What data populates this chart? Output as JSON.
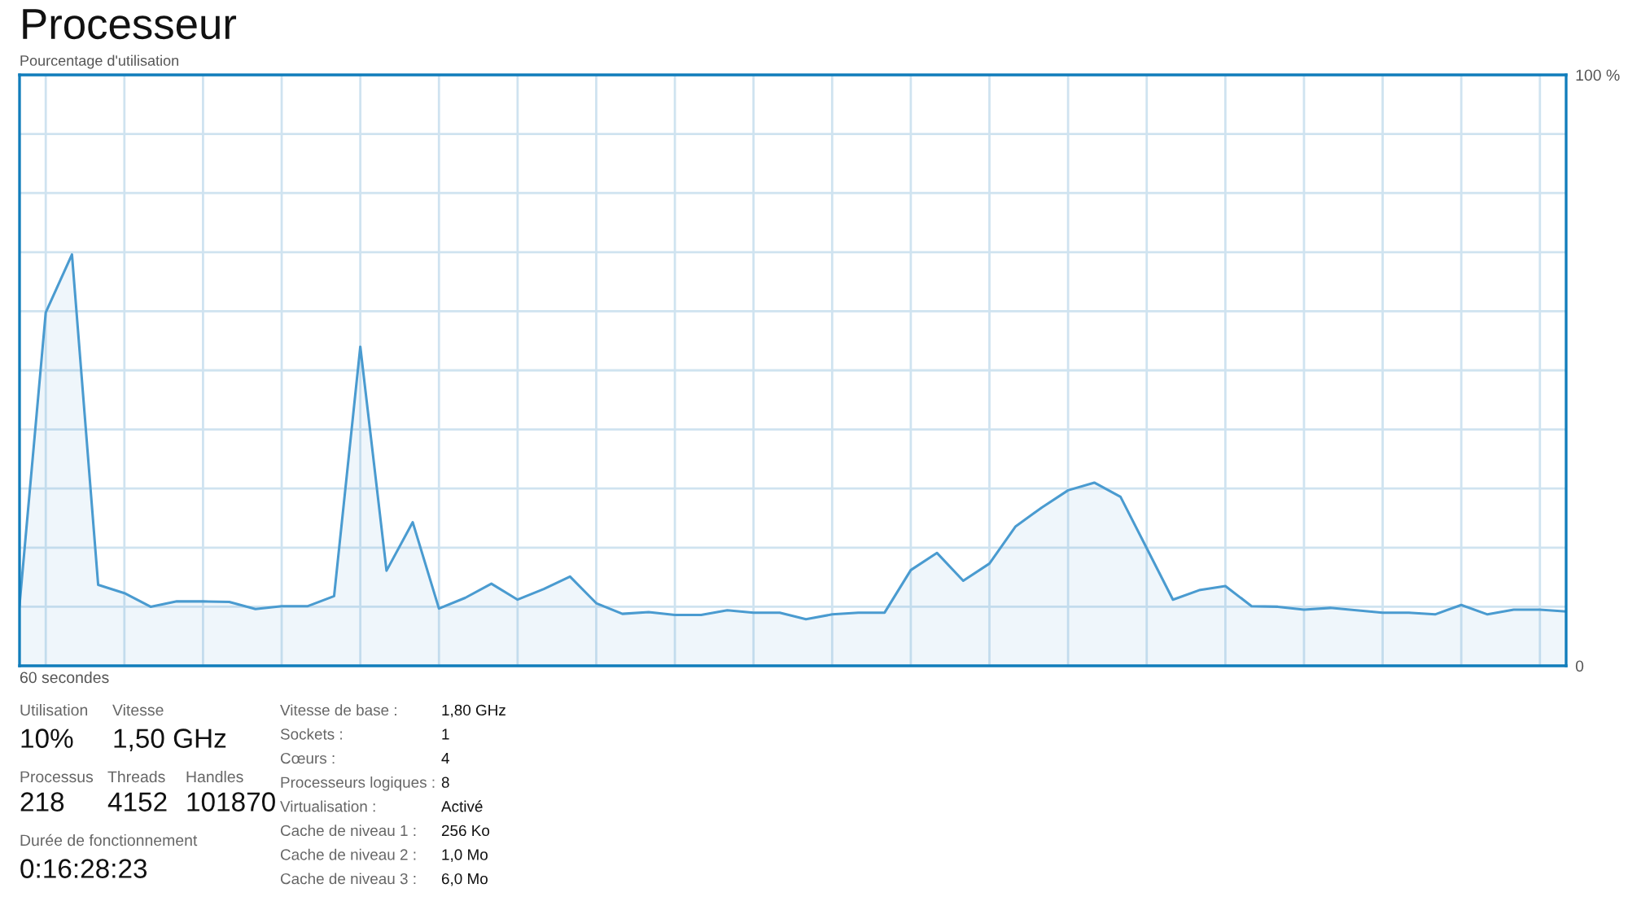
{
  "chart_data": {
    "type": "area",
    "title": "Processeur",
    "ylabel": "Pourcentage d'utilisation",
    "xlabel": "60 secondes",
    "categories": [
      null,
      null,
      null,
      null,
      null,
      null,
      null,
      null,
      null,
      null,
      null,
      null,
      null,
      null,
      null,
      null,
      null,
      null,
      null,
      null,
      null,
      null,
      null,
      null,
      null,
      null,
      null,
      null,
      null,
      null,
      null,
      null,
      null,
      null,
      null,
      null,
      null,
      null,
      null,
      null,
      null,
      null,
      null,
      null,
      null,
      null,
      null,
      null,
      null,
      null,
      null,
      null,
      null,
      null,
      null,
      null,
      null,
      null,
      null,
      null
    ],
    "series": [
      {
        "color": "#4a9bd0",
        "values": [
          10.3,
          59.8,
          69.6,
          13.7,
          12.3,
          10.0,
          10.9,
          10.9,
          10.8,
          9.6,
          10.1,
          10.1,
          11.8,
          54.0,
          16.1,
          24.3,
          9.7,
          11.5,
          13.9,
          11.2,
          13.0,
          15.1,
          10.6,
          8.8,
          9.1,
          8.6,
          8.6,
          9.4,
          9.0,
          9.0,
          7.9,
          8.7,
          9.0,
          9.0,
          16.2,
          19.1,
          14.4,
          17.3,
          23.6,
          26.8,
          29.7,
          31.0,
          28.6,
          19.9,
          11.2,
          12.8,
          13.5,
          10.1,
          10.0,
          9.5,
          9.8,
          9.4,
          9.0,
          9.0,
          8.7,
          10.3,
          8.7,
          9.5,
          9.5,
          9.2
        ]
      }
    ],
    "ylim": [
      0,
      100
    ],
    "yticks": [
      0,
      {
        "value": 10,
        "label": null
      },
      {
        "value": 20,
        "label": null
      },
      {
        "value": 30,
        "label": null
      },
      {
        "value": 40,
        "label": null
      },
      {
        "value": 50,
        "label": null
      },
      {
        "value": 60,
        "label": null
      },
      {
        "value": 70,
        "label": null
      },
      {
        "value": 80,
        "label": null
      },
      {
        "value": 90,
        "label": null
      },
      {
        "value": 100,
        "label": "100 %"
      }
    ],
    "grid": true,
    "annotations": [
      "Utilisation",
      "10%",
      "Vitesse",
      "1,50 GHz",
      "Processus",
      "218",
      "Threads",
      "4152",
      "Handles",
      "101870",
      "Durée de fonctionnement",
      "0:16:28:23",
      "Vitesse de base :",
      "1,80 GHz",
      "Sockets :",
      "1",
      "Cœurs :",
      "4",
      "Processeurs logiques :",
      "8",
      "Virtualisation :",
      "Activé",
      "Cache de niveau 1 :",
      "256 Ko",
      "Cache de niveau 2 :",
      "1,0 Mo",
      "Cache de niveau 3 :",
      "6,0 Mo"
    ]
  }
}
